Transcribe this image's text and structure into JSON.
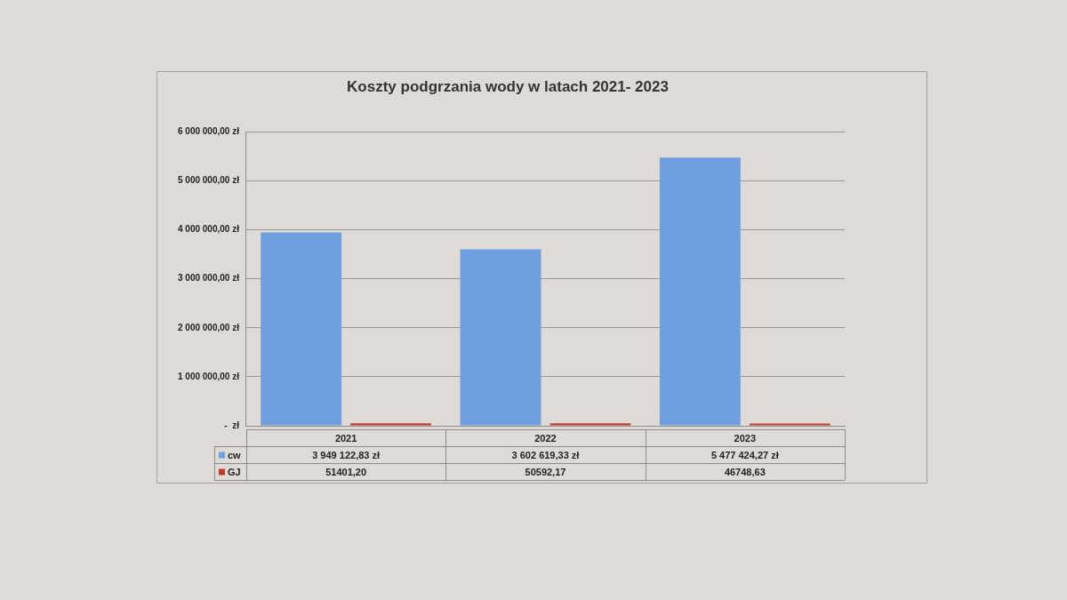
{
  "chart_data": {
    "type": "bar",
    "title": "Koszty podgrzania wody w latach 2021- 2023",
    "categories": [
      "2021",
      "2022",
      "2023"
    ],
    "series": [
      {
        "name": "cw",
        "color": "#6f9fdf",
        "values": [
          3949122.83,
          3602619.33,
          5477424.27
        ],
        "value_labels": [
          "3 949 122,83 zł",
          "3 602 619,33 zł",
          "5 477 424,27 zł"
        ]
      },
      {
        "name": "GJ",
        "color": "#c0392b",
        "values": [
          51401.2,
          50592.17,
          46748.63
        ],
        "value_labels": [
          "51401,20",
          "50592,17",
          "46748,63"
        ]
      }
    ],
    "ylim": [
      0,
      6000000
    ],
    "yticks": [
      {
        "value": 0,
        "label": "-  zł"
      },
      {
        "value": 1000000,
        "label": "1 000 000,00 zł"
      },
      {
        "value": 2000000,
        "label": "2 000 000,00 zł"
      },
      {
        "value": 3000000,
        "label": "3 000 000,00 zł"
      },
      {
        "value": 4000000,
        "label": "4 000 000,00 zł"
      },
      {
        "value": 5000000,
        "label": "5 000 000,00 zł"
      },
      {
        "value": 6000000,
        "label": "6 000 000,00 zł"
      }
    ],
    "grid": "y",
    "legend": "bottom left"
  }
}
